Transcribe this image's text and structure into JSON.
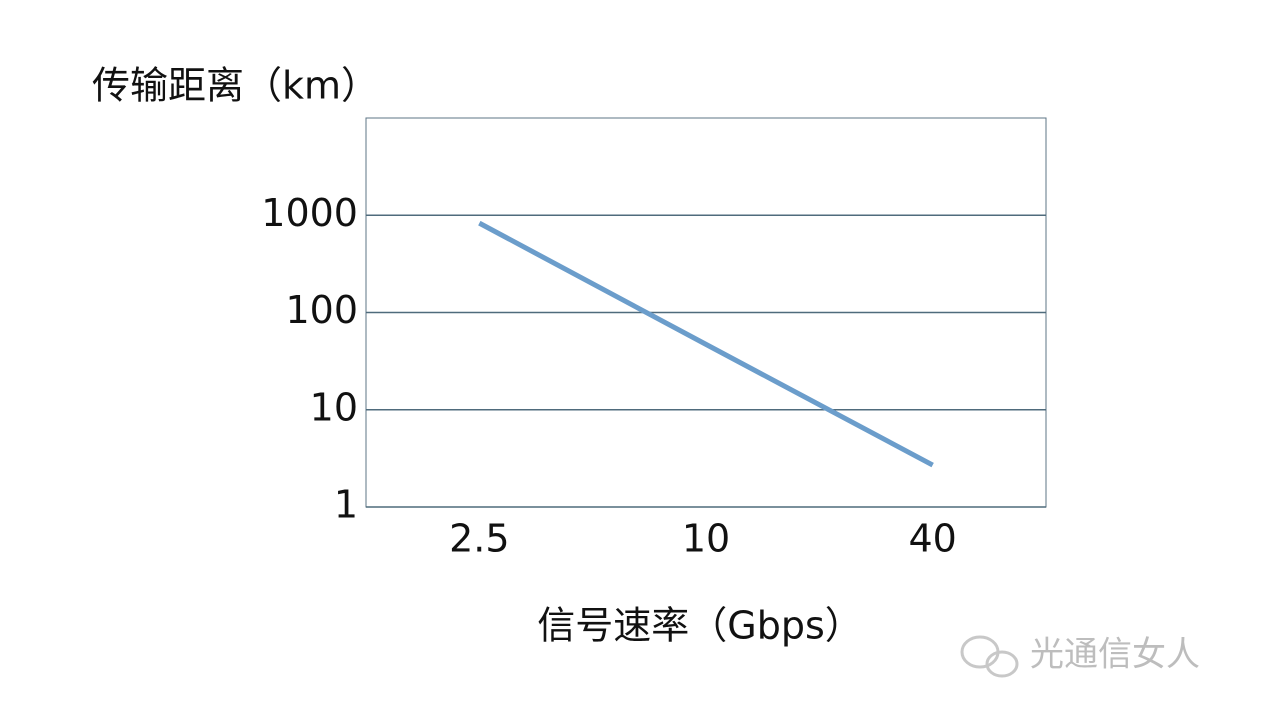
{
  "chart_data": {
    "type": "line",
    "y_label": "传输距离（km）",
    "x_label": "信号速率（Gbps）",
    "categories": [
      "2.5",
      "10",
      "40"
    ],
    "values": [
      830,
      47,
      2.7
    ],
    "color": "#6b9dcb",
    "ylim": [
      1,
      10000
    ],
    "yticks": [
      1,
      10,
      100,
      1000
    ],
    "log_y": true,
    "grid": true,
    "watermark": "光通信女人"
  }
}
